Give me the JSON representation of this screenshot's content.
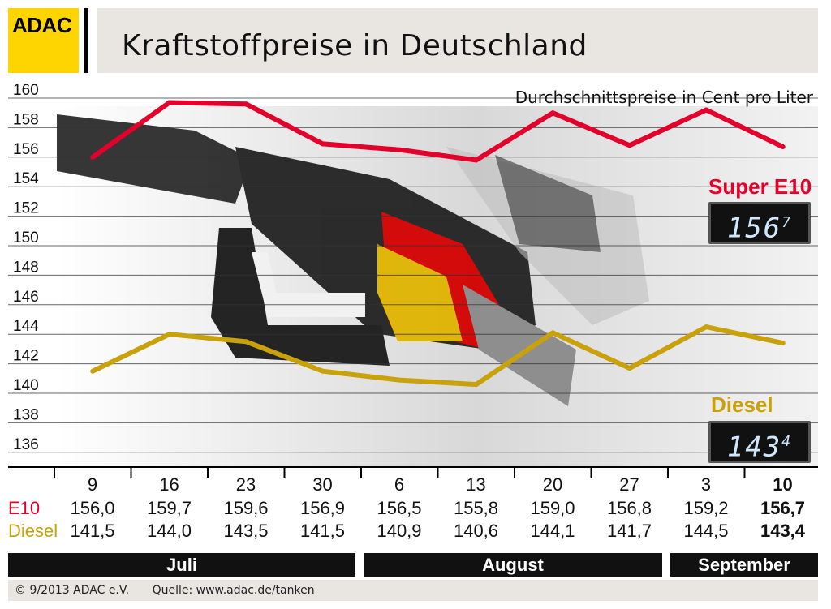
{
  "header": {
    "logo_text": "ADAC",
    "title": "Kraftstoffpreise in Deutschland"
  },
  "colors": {
    "e10": "#e3002b",
    "diesel": "#c9a10a",
    "logo": "#ffd500",
    "bar": "#e9e6e2"
  },
  "chart_data": {
    "type": "line",
    "subtitle": "Durchschnittspreise in Cent pro Liter",
    "ylim": [
      135,
      160
    ],
    "yticks": [
      160,
      158,
      156,
      154,
      152,
      150,
      148,
      146,
      144,
      142,
      140,
      138,
      136
    ],
    "categories": [
      "9",
      "16",
      "23",
      "30",
      "6",
      "13",
      "20",
      "27",
      "3",
      "10"
    ],
    "series": [
      {
        "name": "Super E10",
        "key": "e10",
        "values": [
          156.0,
          159.7,
          159.6,
          156.9,
          156.5,
          155.8,
          159.0,
          156.8,
          159.2,
          156.7
        ]
      },
      {
        "name": "Diesel",
        "key": "diesel",
        "values": [
          141.5,
          144.0,
          143.5,
          141.5,
          140.9,
          140.6,
          144.1,
          141.7,
          144.5,
          143.4
        ]
      }
    ],
    "grid": true
  },
  "labels": {
    "e10_big": "Super E10",
    "diesel_big": "Diesel",
    "e10_display": "156",
    "e10_display_sup": "7",
    "diesel_display": "143",
    "diesel_display_sup": "4",
    "row_e10": "E10",
    "row_diesel": "Diesel"
  },
  "table": {
    "dates": [
      "9",
      "16",
      "23",
      "30",
      "6",
      "13",
      "20",
      "27",
      "3",
      "10"
    ],
    "e10": [
      "156,0",
      "159,7",
      "159,6",
      "156,9",
      "156,5",
      "155,8",
      "159,0",
      "156,8",
      "159,2",
      "156,7"
    ],
    "diesel": [
      "141,5",
      "144,0",
      "143,5",
      "141,5",
      "140,9",
      "140,6",
      "144,1",
      "141,7",
      "144,5",
      "143,4"
    ]
  },
  "months": [
    "Juli",
    "August",
    "September"
  ],
  "footer": {
    "copyright": "© 9/2013  ADAC e.V.",
    "source": "Quelle: www.adac.de/tanken"
  }
}
